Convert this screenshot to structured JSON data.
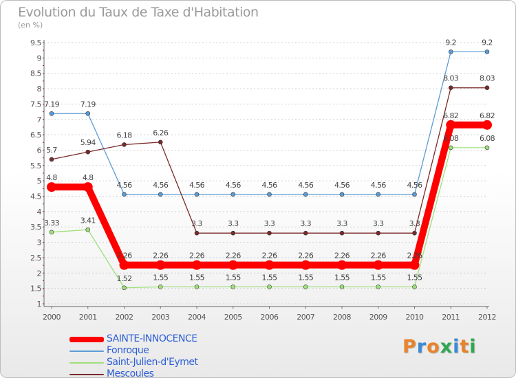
{
  "header": {
    "title": "Evolution du Taux de Taxe d'Habitation",
    "subtitle": "(en %)"
  },
  "logo": {
    "text": "Proxiti",
    "colors": [
      "#e8832a",
      "#3a8ad6",
      "#e8832a",
      "#2fa84f",
      "#3a8ad6",
      "#e8832a",
      "#2fa84f"
    ]
  },
  "chart_data": {
    "type": "line",
    "categories": [
      "2000",
      "2001",
      "2002",
      "2003",
      "2004",
      "2005",
      "2006",
      "2007",
      "2008",
      "2009",
      "2010",
      "2011",
      "2012"
    ],
    "yticks": [
      "1",
      "1.5",
      "2",
      "2.5",
      "3",
      "3.5",
      "4",
      "4.5",
      "5",
      "5.5",
      "6",
      "6.5",
      "7",
      "7.5",
      "8",
      "8.5",
      "9",
      "9.5"
    ],
    "ylim": [
      1,
      9.5
    ],
    "grid": "horizontal",
    "legend_position": "bottom-left",
    "series": [
      {
        "name": "Fonroque",
        "color": "#5b9bd5",
        "values": [
          7.19,
          7.19,
          4.56,
          4.56,
          4.56,
          4.56,
          4.56,
          4.56,
          4.56,
          4.56,
          4.56,
          9.2,
          9.2
        ],
        "labels": [
          "7.19",
          "7.19",
          "4.56",
          "4.56",
          "4.56",
          "4.56",
          "4.56",
          "4.56",
          "4.56",
          "4.56",
          "4.56",
          "9.2",
          "9.2"
        ]
      },
      {
        "name": "Saint-Julien-d'Eymet",
        "color": "#9ee07a",
        "values": [
          3.33,
          3.41,
          1.52,
          1.55,
          1.55,
          1.55,
          1.55,
          1.55,
          1.55,
          1.55,
          1.55,
          6.08,
          6.08
        ],
        "labels": [
          "3.33",
          "3.41",
          "1.52",
          "1.55",
          "1.55",
          "1.55",
          "1.55",
          "1.55",
          "1.55",
          "1.55",
          "1.55",
          "6.08",
          "6.08"
        ]
      },
      {
        "name": "Mescoules",
        "color": "#7a2a2a",
        "values": [
          5.7,
          5.94,
          6.18,
          6.26,
          3.3,
          3.3,
          3.3,
          3.3,
          3.3,
          3.3,
          3.3,
          8.03,
          8.03
        ],
        "labels": [
          "5.7",
          "5.94",
          "6.18",
          "6.26",
          "3.3",
          "3.3",
          "3.3",
          "3.3",
          "3.3",
          "3.3",
          "3.3",
          "8.03",
          "8.03"
        ]
      },
      {
        "name": "SAINTE-INNOCENCE",
        "color": "#ff0000",
        "thick": true,
        "values": [
          4.8,
          4.8,
          2.26,
          2.26,
          2.26,
          2.26,
          2.26,
          2.26,
          2.26,
          2.26,
          2.26,
          6.82,
          6.82
        ],
        "labels": [
          "4.8",
          "4.8",
          "2.26",
          "2.26",
          "2.26",
          "2.26",
          "2.26",
          "2.26",
          "2.26",
          "2.26",
          "2.26",
          "6.82",
          "6.82"
        ]
      }
    ],
    "legend_order": [
      "SAINTE-INNOCENCE",
      "Fonroque",
      "Saint-Julien-d'Eymet",
      "Mescoules"
    ]
  }
}
